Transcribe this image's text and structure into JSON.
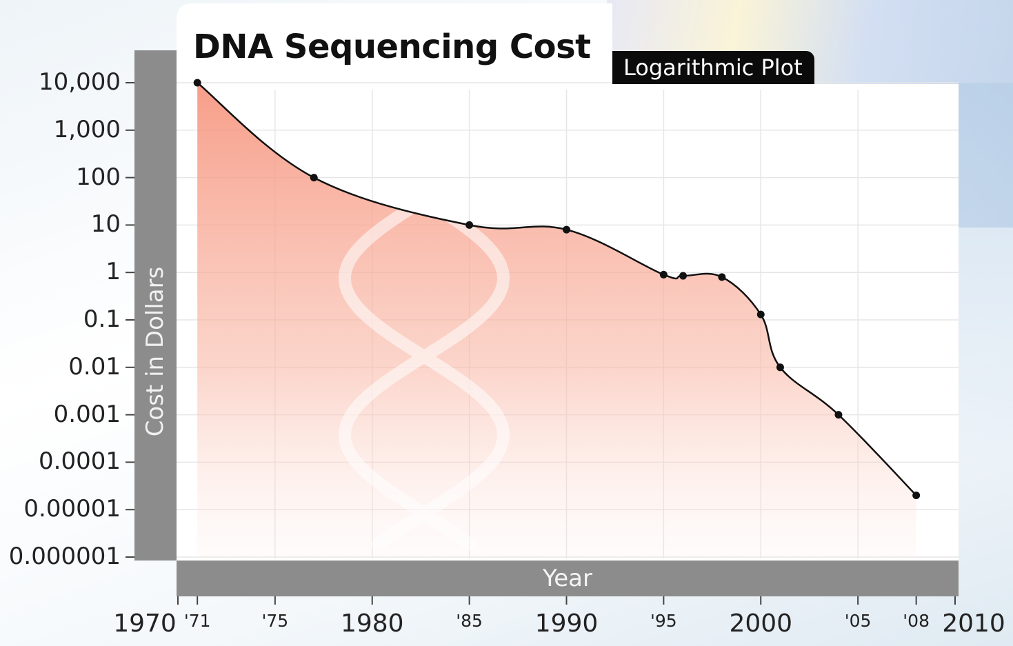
{
  "chart_data": {
    "type": "line",
    "title": "DNA Sequencing Cost",
    "subtitle": "Logarithmic Plot",
    "xlabel": "Year",
    "ylabel": "Cost in Dollars",
    "yscale": "log",
    "ylim": [
      1e-06,
      10000
    ],
    "xlim": [
      1970,
      2010
    ],
    "grid": true,
    "yticks": [
      10000,
      1000,
      100,
      10,
      1,
      0.1,
      0.01,
      0.001,
      0.0001,
      1e-05,
      1e-06
    ],
    "ytick_labels": [
      "10,000",
      "1,000",
      "100",
      "10",
      "1",
      "0.1",
      "0.01",
      "0.001",
      "0.0001",
      "0.00001",
      "0.000001"
    ],
    "xticks_major": [
      1970,
      1980,
      1990,
      2000,
      2010
    ],
    "xtick_labels_major": [
      "1970",
      "1980",
      "1990",
      "2000",
      "2010"
    ],
    "xticks_minor": [
      1971,
      1975,
      1985,
      1995,
      2005,
      2008
    ],
    "xtick_labels_minor": [
      "'71",
      "'75",
      "'85",
      "'95",
      "'05",
      "'08"
    ],
    "series": [
      {
        "x": [
          1971,
          1977,
          1985,
          1990,
          1995,
          1996,
          1998,
          2000,
          2001,
          2004,
          2008
        ],
        "y": [
          10000,
          100,
          10,
          8,
          0.9,
          0.85,
          0.8,
          0.13,
          0.01,
          0.001,
          2e-05
        ]
      }
    ],
    "colors": {
      "line": "#111111",
      "fill": "#f7a08c",
      "axis_band": "#8c8c8c",
      "subtitle_bg": "#0b0b0b"
    }
  }
}
